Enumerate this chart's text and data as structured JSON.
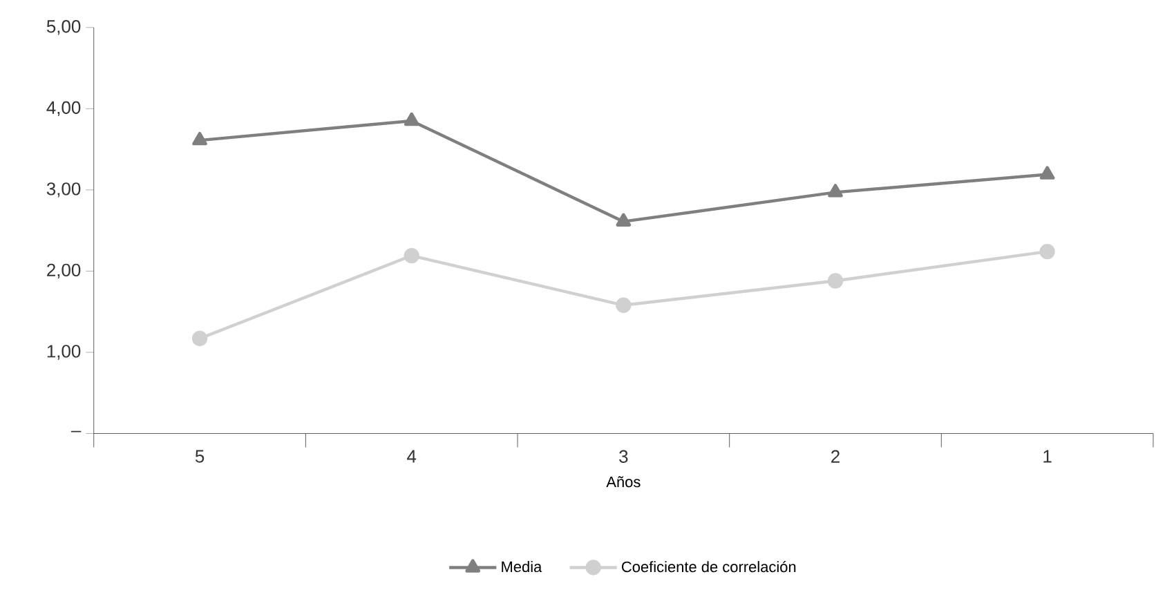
{
  "chart_data": {
    "type": "line",
    "xlabel": "Años",
    "categories": [
      "5",
      "4",
      "3",
      "2",
      "1"
    ],
    "series": [
      {
        "name": "Media",
        "color": "#7f7f7f",
        "marker": "triangle",
        "values": [
          3.61,
          3.85,
          2.61,
          2.97,
          3.19
        ]
      },
      {
        "name": "Coeficiente de correlación",
        "color": "#d0d0d0",
        "marker": "circle",
        "values": [
          1.17,
          2.19,
          1.58,
          1.88,
          2.24
        ]
      }
    ],
    "ylim": [
      0,
      5
    ],
    "yticks": [
      {
        "value": 0,
        "label": "–"
      },
      {
        "value": 1,
        "label": "1,00"
      },
      {
        "value": 2,
        "label": "2,00"
      },
      {
        "value": 3,
        "label": "3,00"
      },
      {
        "value": 4,
        "label": "4,00"
      },
      {
        "value": 5,
        "label": "5,00"
      }
    ],
    "grid": false,
    "legend": "bottom",
    "line_style": "solid"
  }
}
